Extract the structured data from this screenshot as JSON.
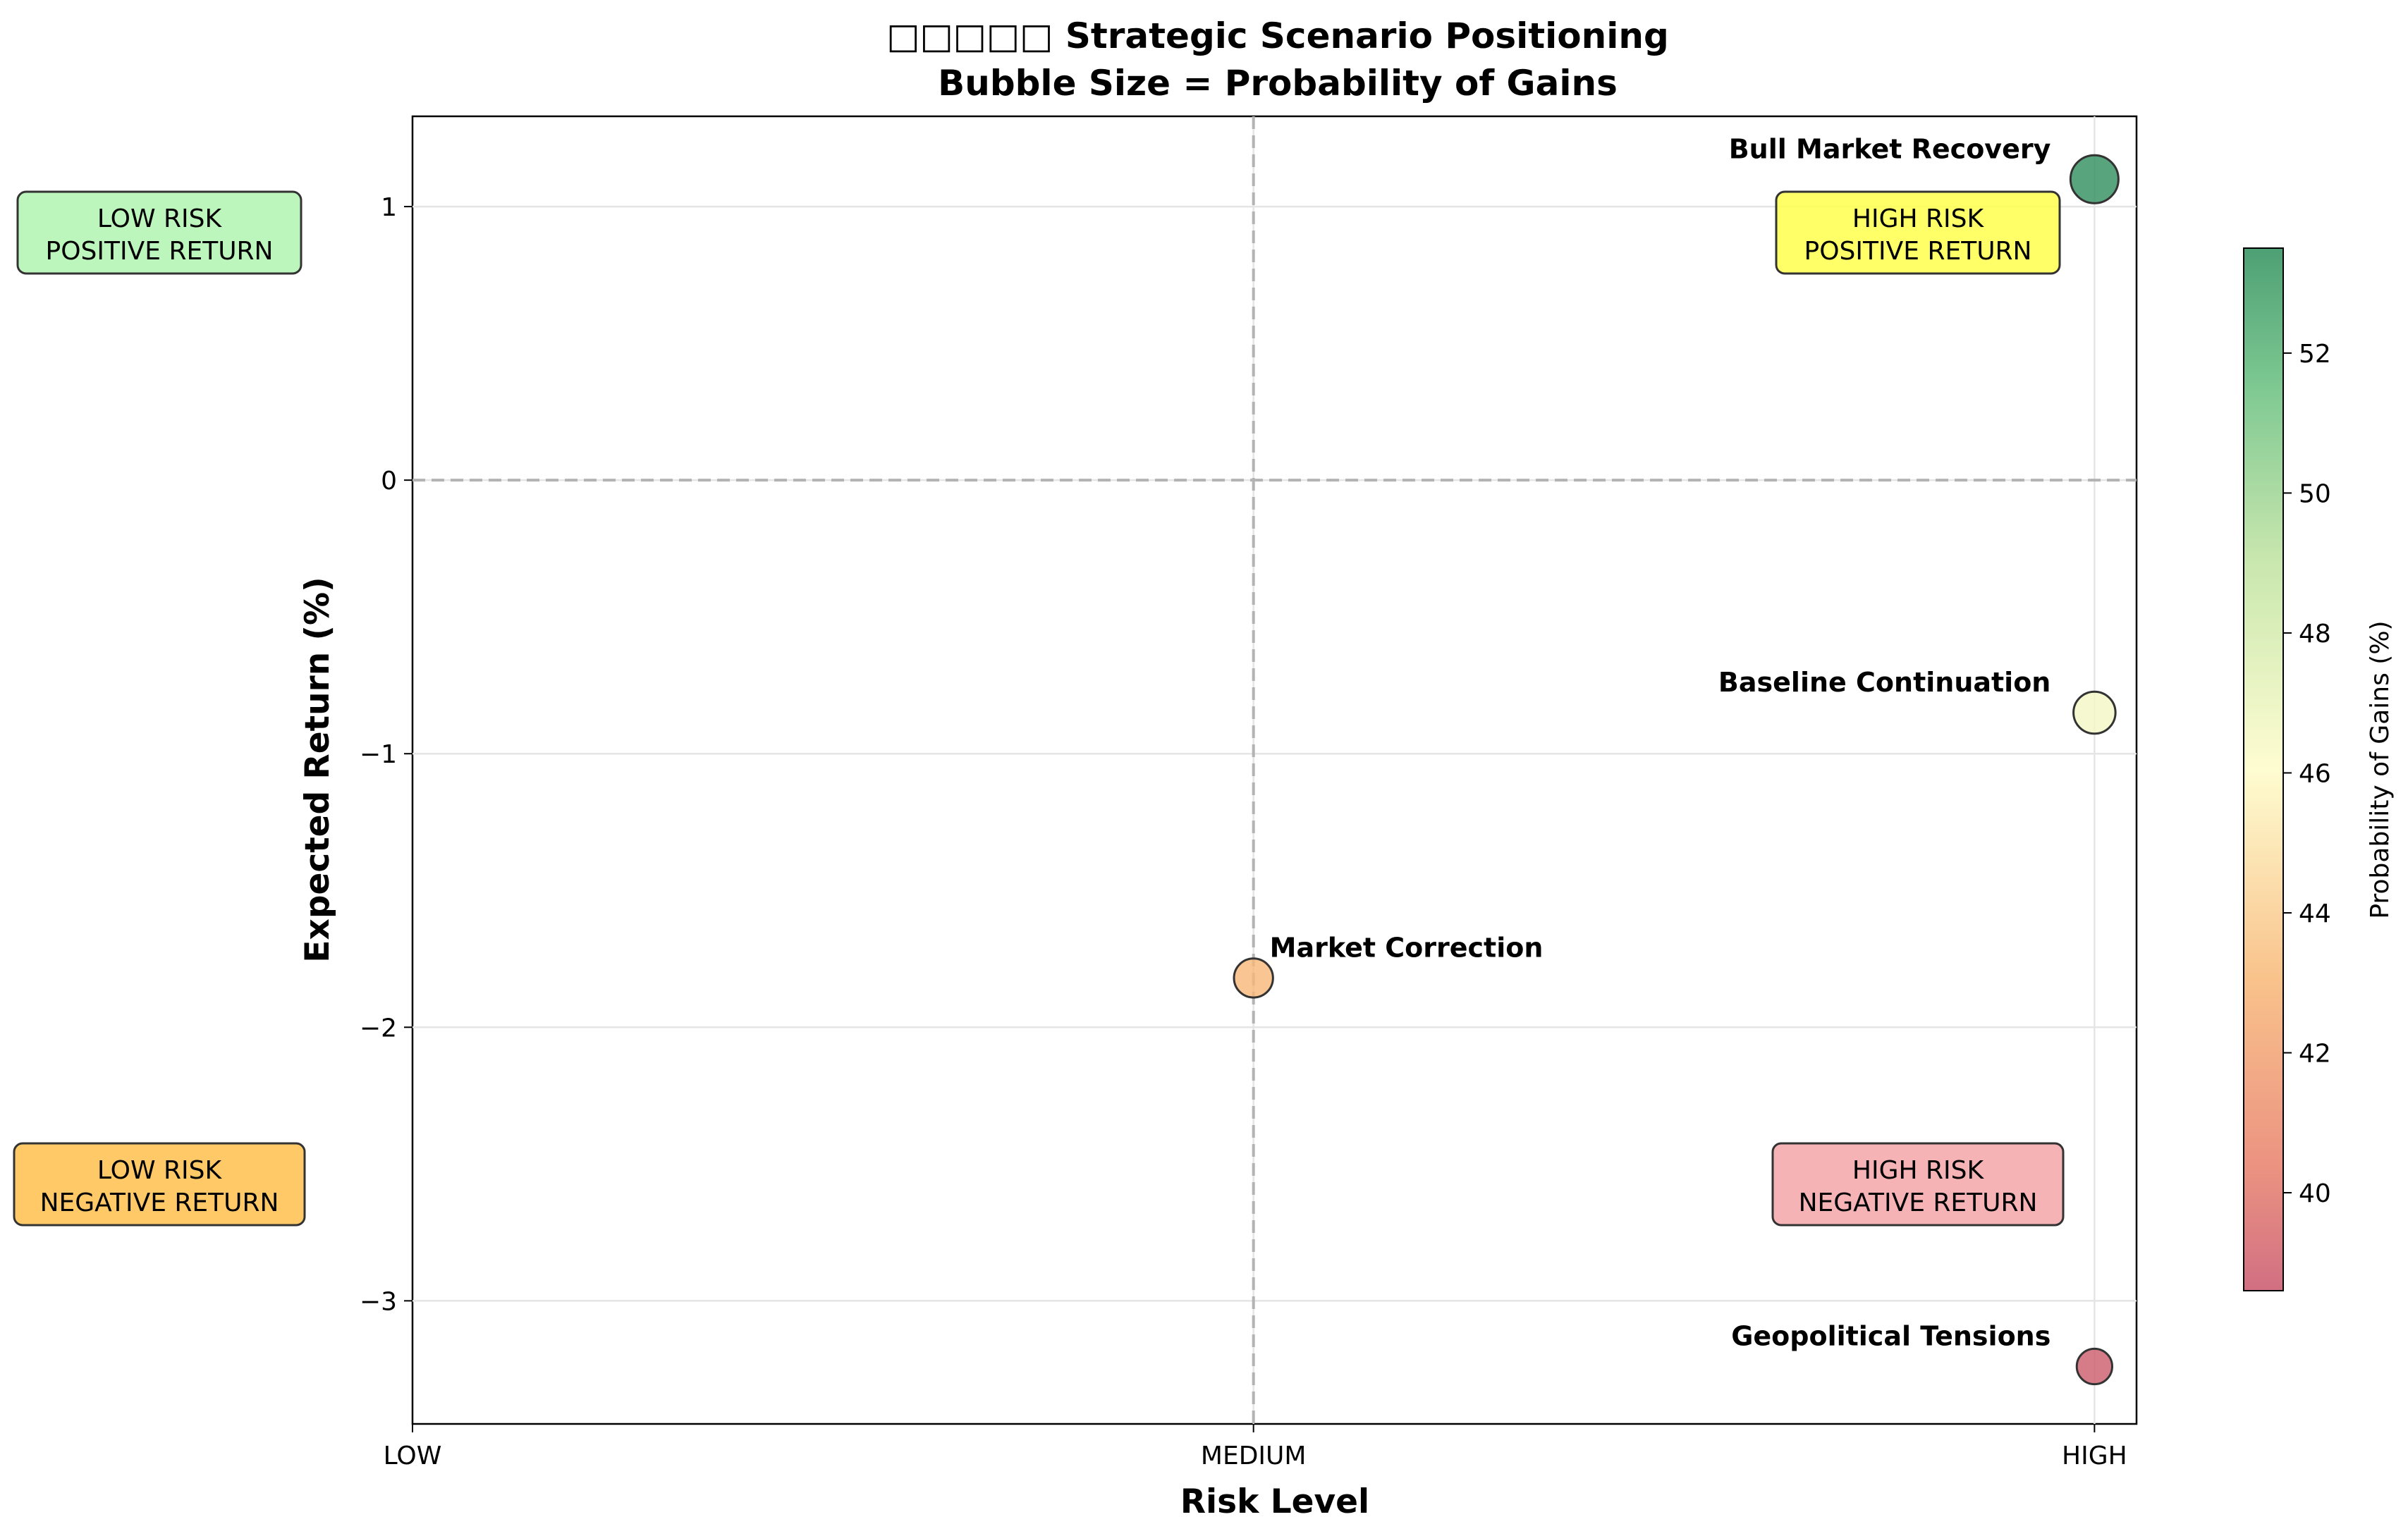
{
  "chart_data": {
    "type": "scatter",
    "title_line1": "□□□□□ Strategic Scenario Positioning",
    "title_line2": "Bubble Size = Probability of Gains",
    "xlabel": "Risk Level",
    "ylabel": "Expected Return (%)",
    "x_categories": [
      "LOW",
      "MEDIUM",
      "HIGH"
    ],
    "xlim": [
      0,
      2.05
    ],
    "ylim": [
      -3.45,
      1.33
    ],
    "y_ticks": [
      1,
      0,
      -1,
      -2,
      -3
    ],
    "y_tick_labels": [
      "1",
      "0",
      "−1",
      "−2",
      "−3"
    ],
    "grid": true,
    "reference_lines": {
      "x": 1,
      "y": 0
    },
    "points": [
      {
        "label": "Bull Market Recovery",
        "risk": "HIGH",
        "x": 2,
        "y": 1.1,
        "probability": 53.5,
        "label_side": "left"
      },
      {
        "label": "Baseline Continuation",
        "risk": "HIGH",
        "x": 2,
        "y": -0.85,
        "probability": 46.5,
        "label_side": "left"
      },
      {
        "label": "Market Correction",
        "risk": "MEDIUM",
        "x": 1,
        "y": -1.82,
        "probability": 43.0,
        "label_side": "right"
      },
      {
        "label": "Geopolitical Tensions",
        "risk": "HIGH",
        "x": 2,
        "y": -3.24,
        "probability": 38.8,
        "label_side": "left"
      }
    ],
    "quadrant_labels": [
      {
        "line1": "LOW RISK",
        "line2": "POSITIVE RETURN",
        "color": "#b2f5b0"
      },
      {
        "line1": "HIGH RISK",
        "line2": "POSITIVE RETURN",
        "color": "#ffff4d"
      },
      {
        "line1": "LOW RISK",
        "line2": "NEGATIVE RETURN",
        "color": "#ffc04d"
      },
      {
        "line1": "HIGH RISK",
        "line2": "NEGATIVE RETURN",
        "color": "#f4a6a9"
      }
    ],
    "colorbar": {
      "label": "Probability of Gains (%)",
      "range": [
        38.6,
        53.5
      ],
      "ticks": [
        40,
        42,
        44,
        46,
        48,
        50,
        52
      ],
      "colormap": "RdYlGn"
    }
  }
}
